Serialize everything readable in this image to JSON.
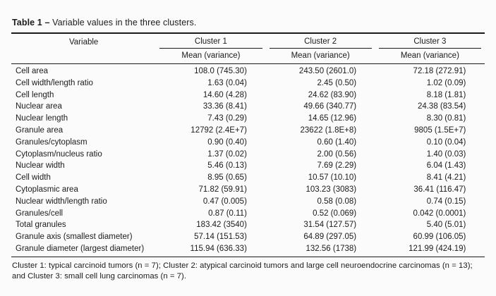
{
  "table": {
    "label": "Table 1",
    "separator": "–",
    "caption": "Variable values in the three clusters.",
    "columns": {
      "variable": "Variable",
      "clusters": [
        "Cluster 1",
        "Cluster 2",
        "Cluster 3"
      ],
      "subheader": "Mean (variance)"
    },
    "rows": [
      {
        "variable": "Cell area",
        "c1": "108.0 (745.30)",
        "c2": "243.50 (2601.0)",
        "c3": "72.18 (272.91)"
      },
      {
        "variable": "Cell width/length ratio",
        "c1": "1.63 (0.04)",
        "c2": "2.45 (0.50)",
        "c3": "1.02 (0.09)"
      },
      {
        "variable": "Cell length",
        "c1": "14.60 (4.28)",
        "c2": "24.62 (83.90)",
        "c3": "8.18 (1.81)"
      },
      {
        "variable": "Nuclear area",
        "c1": "33.36 (8.41)",
        "c2": "49.66 (340.77)",
        "c3": "24.38 (83.54)"
      },
      {
        "variable": "Nuclear length",
        "c1": "7.43 (0.29)",
        "c2": "14.65 (12.96)",
        "c3": "8.30 (0.81)"
      },
      {
        "variable": "Granule area",
        "c1": "12792 (2.4E+7)",
        "c2": "23622 (1.8E+8)",
        "c3": "9805 (1.5E+7)"
      },
      {
        "variable": "Granules/cytoplasm",
        "c1": "0.90 (0.40)",
        "c2": "0.60 (1.40)",
        "c3": "0.10 (0.04)"
      },
      {
        "variable": "Cytoplasm/nucleus ratio",
        "c1": "1.37 (0.02)",
        "c2": "2.00 (0.56)",
        "c3": "1.40 (0.03)"
      },
      {
        "variable": "Nuclear width",
        "c1": "5.46 (0.13)",
        "c2": "7.69 (2.29)",
        "c3": "6.04 (1.43)"
      },
      {
        "variable": "Cell width",
        "c1": "8.95 (0.65)",
        "c2": "10.57 (10.10)",
        "c3": "8.41 (4.21)"
      },
      {
        "variable": "Cytoplasmic area",
        "c1": "71.82 (59.91)",
        "c2": "103.23 (3083)",
        "c3": "36.41 (116.47)"
      },
      {
        "variable": "Nuclear width/length ratio",
        "c1": "0.47 (0.005)",
        "c2": "0.58 (0.08)",
        "c3": "0.74 (0.15)"
      },
      {
        "variable": "Granules/cell",
        "c1": "0.87 (0.11)",
        "c2": "0.52 (0.069)",
        "c3": "0.042 (0.0001)"
      },
      {
        "variable": "Total granules",
        "c1": "183.42 (3540)",
        "c2": "31.54 (127.57)",
        "c3": "5.40 (5.01)"
      },
      {
        "variable": "Granule axis (smallest diameter)",
        "c1": "57.14 (151.53)",
        "c2": "64.89 (297.05)",
        "c3": "60.99 (106.05)"
      },
      {
        "variable": "Granule diameter (largest diameter)",
        "c1": "115.94 (636.33)",
        "c2": "132.56 (1738)",
        "c3": "121.99 (424.19)"
      }
    ],
    "footnote": "Cluster 1: typical carcinoid tumors (n = 7); Cluster 2: atypical carcinoid tumors and large cell neuroendocrine carcinomas (n = 13); and Cluster 3: small cell lung carcinomas (n = 7)."
  },
  "colors": {
    "text": "#1b1b1b",
    "rule": "#1a1a1a",
    "background": "#fbfbfb"
  }
}
